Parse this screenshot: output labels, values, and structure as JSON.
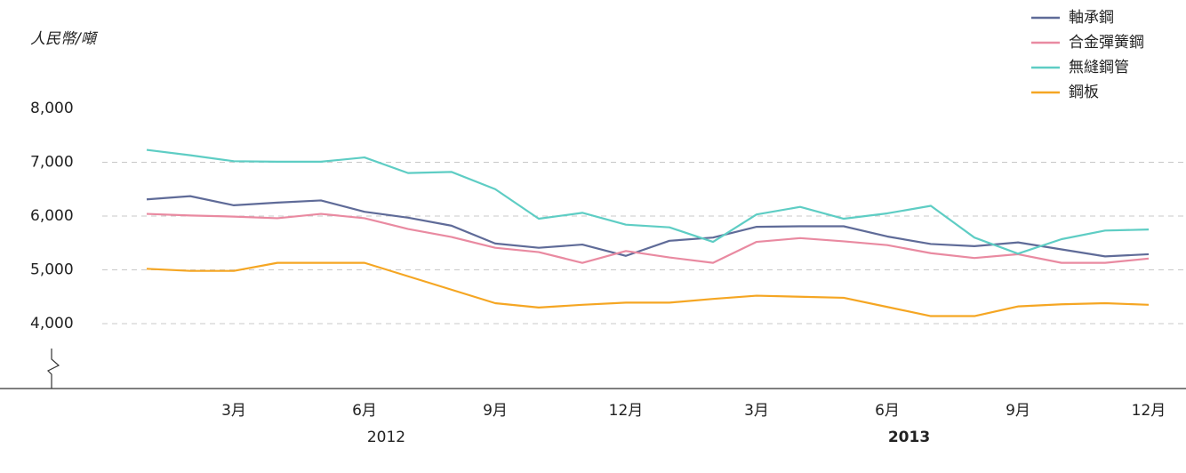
{
  "chart_data": {
    "type": "line",
    "y_axis_label": "人民幣/噸",
    "categories": [
      null,
      null,
      "3月",
      null,
      null,
      "6月",
      null,
      null,
      "9月",
      null,
      null,
      "12月",
      null,
      null,
      "3月",
      null,
      null,
      "6月",
      null,
      null,
      "9月",
      null,
      null,
      "12月"
    ],
    "years": [
      "2012",
      "2013"
    ],
    "ylim": [
      4000,
      8000
    ],
    "yticks": [
      {
        "value": 4000,
        "label": "4,000"
      },
      {
        "value": 5000,
        "label": "5,000"
      },
      {
        "value": 6000,
        "label": "6,000"
      },
      {
        "value": 7000,
        "label": "7,000"
      },
      {
        "value": 8000,
        "label": "8,000"
      }
    ],
    "grid": true,
    "legend": "top-right",
    "series": [
      {
        "name": "軸承鋼",
        "color": "#5f6b98",
        "values": [
          6310,
          6370,
          6200,
          6250,
          6290,
          6080,
          5970,
          5820,
          5490,
          5410,
          5470,
          5260,
          5540,
          5600,
          5800,
          5810,
          5810,
          5620,
          5480,
          5440,
          5510,
          5380,
          5250,
          5290
        ]
      },
      {
        "name": "合金彈簧鋼",
        "color": "#e98aa1",
        "values": [
          6040,
          6010,
          5990,
          5960,
          6040,
          5960,
          5760,
          5610,
          5410,
          5330,
          5130,
          5350,
          5230,
          5130,
          5520,
          5590,
          5530,
          5460,
          5310,
          5220,
          5290,
          5130,
          5130,
          5210
        ]
      },
      {
        "name": "無縫鋼管",
        "color": "#5ecdc4",
        "values": [
          7230,
          7130,
          7020,
          7010,
          7010,
          7090,
          6800,
          6820,
          6500,
          5950,
          6060,
          5840,
          5790,
          5520,
          6030,
          6170,
          5950,
          6050,
          6190,
          5600,
          5300,
          5570,
          5730,
          5750
        ]
      },
      {
        "name": "鋼板",
        "color": "#f5a623",
        "values": [
          5020,
          4980,
          4980,
          5130,
          5130,
          5130,
          4880,
          4630,
          4380,
          4300,
          4350,
          4390,
          4390,
          4460,
          4520,
          4500,
          4480,
          4310,
          4140,
          4140,
          4320,
          4360,
          4380,
          4350
        ]
      }
    ]
  }
}
